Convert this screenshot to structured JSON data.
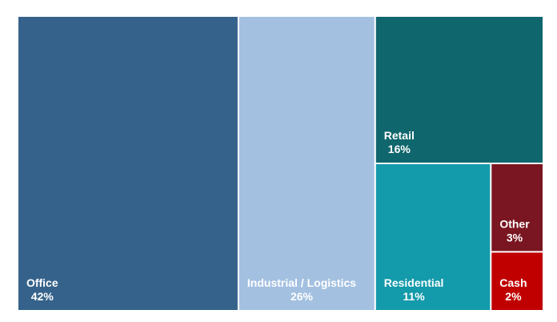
{
  "chart_data": {
    "type": "treemap",
    "title": "",
    "items": [
      {
        "label": "Office",
        "value": 42,
        "value_label": "42%",
        "color": "#35628A"
      },
      {
        "label": "Industrial / Logistics",
        "value": 26,
        "value_label": "26%",
        "color": "#A3C0E0"
      },
      {
        "label": "Retail",
        "value": 16,
        "value_label": "16%",
        "color": "#10666D"
      },
      {
        "label": "Residential",
        "value": 11,
        "value_label": "11%",
        "color": "#139AAB"
      },
      {
        "label": "Other",
        "value": 3,
        "value_label": "3%",
        "color": "#7A1621"
      },
      {
        "label": "Cash",
        "value": 2,
        "value_label": "2%",
        "color": "#C00000"
      }
    ]
  }
}
